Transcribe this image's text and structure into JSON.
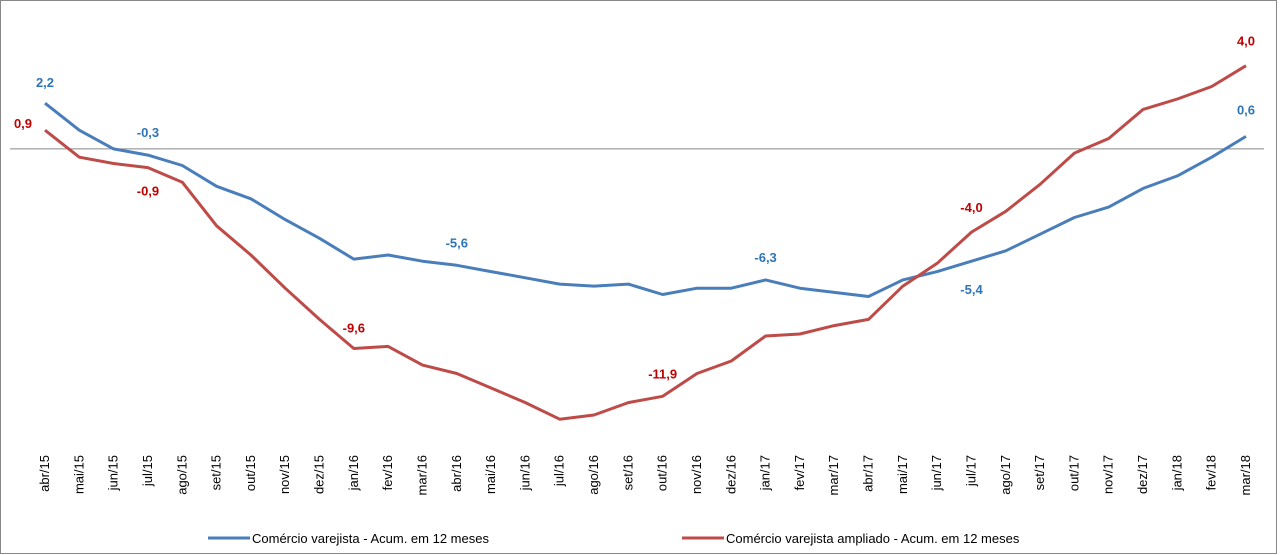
{
  "chart_data": {
    "type": "line",
    "categories": [
      "abr/15",
      "mai/15",
      "jun/15",
      "jul/15",
      "ago/15",
      "set/15",
      "out/15",
      "nov/15",
      "dez/15",
      "jan/16",
      "fev/16",
      "mar/16",
      "abr/16",
      "mai/16",
      "jun/16",
      "jul/16",
      "ago/16",
      "set/16",
      "out/16",
      "nov/16",
      "dez/16",
      "jan/17",
      "fev/17",
      "mar/17",
      "abr/17",
      "mai/17",
      "jun/17",
      "jul/17",
      "ago/17",
      "set/17",
      "out/17",
      "nov/17",
      "dez/17",
      "jan/18",
      "fev/18",
      "mar/18"
    ],
    "series": [
      {
        "name": "Comércio varejista - Acum. em 12 meses",
        "color": "#4a7ebb",
        "label_color": "#2e75b6",
        "values": [
          2.2,
          0.9,
          0.0,
          -0.3,
          -0.8,
          -1.8,
          -2.4,
          -3.4,
          -4.3,
          -5.3,
          -5.1,
          -5.4,
          -5.6,
          -5.9,
          -6.2,
          -6.5,
          -6.6,
          -6.5,
          -7.0,
          -6.7,
          -6.7,
          -6.3,
          -6.7,
          -6.9,
          -7.1,
          -6.3,
          -5.9,
          -5.4,
          -4.9,
          -4.1,
          -3.3,
          -2.8,
          -1.9,
          -1.3,
          -0.4,
          0.6
        ],
        "value_labels": [
          "2,2",
          null,
          null,
          "-0,3",
          null,
          null,
          null,
          null,
          null,
          null,
          null,
          null,
          "-5,6",
          null,
          null,
          null,
          null,
          null,
          null,
          null,
          null,
          "-6,3",
          null,
          null,
          null,
          null,
          null,
          "-5,4",
          null,
          null,
          null,
          null,
          null,
          null,
          null,
          "0,6"
        ]
      },
      {
        "name": "Comércio varejista ampliado - Acum. em 12 meses",
        "color": "#be4b48",
        "label_color": "#c00000",
        "values": [
          0.9,
          -0.4,
          -0.7,
          -0.9,
          -1.6,
          -3.7,
          -5.1,
          -6.7,
          -8.2,
          -9.6,
          -9.5,
          -10.4,
          -10.8,
          -11.5,
          -12.2,
          -13.0,
          -12.8,
          -12.2,
          -11.9,
          -10.8,
          -10.2,
          -9.0,
          -8.9,
          -8.5,
          -8.2,
          -6.6,
          -5.5,
          -4.0,
          -3.0,
          -1.7,
          -0.2,
          0.5,
          1.9,
          2.4,
          3.0,
          4.0
        ],
        "value_labels": [
          "0,9",
          null,
          null,
          "-0,9",
          null,
          null,
          null,
          null,
          null,
          "-9,6",
          null,
          null,
          null,
          null,
          null,
          null,
          null,
          null,
          "-11,9",
          null,
          null,
          null,
          null,
          null,
          null,
          null,
          null,
          "-4,0",
          null,
          null,
          null,
          null,
          null,
          null,
          null,
          "4,0"
        ]
      }
    ],
    "ylim": [
      -14,
      6.2
    ],
    "legend": "bottom"
  }
}
